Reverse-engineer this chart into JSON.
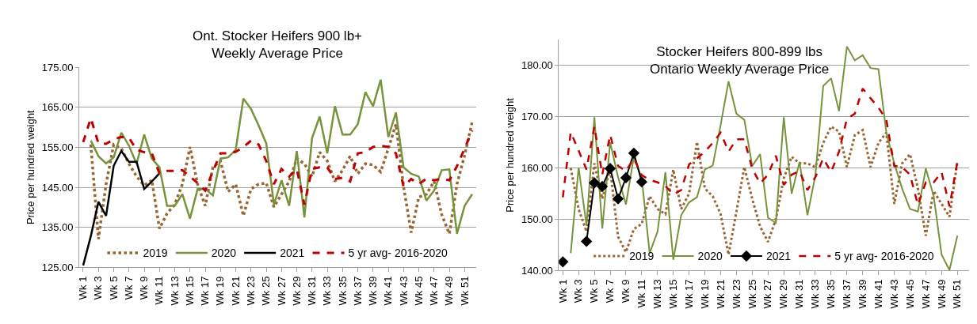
{
  "chart_data": [
    {
      "type": "line",
      "title": "Ont. Stocker Heifers 900 lb+\nWeekly Average Price",
      "ylabel": "Price per hundred weight",
      "categories": [
        "Wk 1",
        null,
        "Wk 3",
        null,
        "Wk 5",
        null,
        "Wk 7",
        null,
        "Wk 9",
        null,
        "Wk 11",
        null,
        "Wk 13",
        null,
        "Wk 15",
        null,
        "Wk 17",
        null,
        "Wk 19",
        null,
        "Wk 21",
        null,
        "Wk 23",
        null,
        "Wk 25",
        null,
        "Wk 27",
        null,
        "Wk 29",
        null,
        "Wk 31",
        null,
        "Wk 33",
        null,
        "Wk 35",
        null,
        "Wk 37",
        null,
        "Wk 39",
        null,
        "Wk 41",
        null,
        "Wk 43",
        null,
        "Wk 45",
        null,
        "Wk 47",
        null,
        "Wk 49",
        null,
        "Wk 51",
        null
      ],
      "ylim": [
        125,
        175
      ],
      "yticks": [
        {
          "value": 125,
          "label": "125.00"
        },
        {
          "value": 135,
          "label": "135.00"
        },
        {
          "value": 145,
          "label": "145.00"
        },
        {
          "value": 155,
          "label": "155.00"
        },
        {
          "value": 165,
          "label": "165.00"
        },
        {
          "value": 175,
          "label": "175.00"
        }
      ],
      "grid": "y",
      "legend": "bottom",
      "series": [
        {
          "name": "2019",
          "color": "#996633",
          "line_style": "dotted",
          "values": [
            null,
            155.7,
            132.1,
            145.8,
            155.7,
            154.7,
            150.9,
            147.7,
            145.5,
            146.8,
            134.7,
            138.5,
            140.7,
            145.8,
            155.1,
            145.8,
            140.4,
            150,
            151.6,
            143.9,
            145.8,
            137.9,
            144.6,
            145.8,
            146.1,
            140.1,
            143.3,
            146.5,
            152.2,
            150.9,
            147.7,
            153.8,
            151.6,
            146.5,
            149.3,
            152.8,
            148.4,
            150.9,
            150.6,
            148.9,
            154.7,
            160.8,
            145.2,
            133.7,
            142.6,
            143.3,
            146.5,
            138.2,
            133.4,
            145.8,
            153,
            161.4
          ]
        },
        {
          "name": "2020",
          "color": "#77933c",
          "line_style": "solid",
          "values": [
            null,
            156.7,
            152.8,
            151,
            152.5,
            158.7,
            155.4,
            150.9,
            158.2,
            152.2,
            150,
            140.4,
            140.4,
            143.3,
            137.2,
            144.6,
            144.6,
            143,
            152.2,
            152.5,
            154.4,
            167.2,
            164.6,
            160.5,
            156,
            140.7,
            146.8,
            140.4,
            154.1,
            137.5,
            157.3,
            162.7,
            153.5,
            165.3,
            158.2,
            158.2,
            160.8,
            168.8,
            165.3,
            171.9,
            157.6,
            163.7,
            150,
            148.4,
            147.7,
            141.7,
            144.2,
            149.3,
            149.5,
            133.4,
            140.4,
            143.3
          ]
        },
        {
          "name": "2021",
          "color": "#000000",
          "line_style": "solid",
          "values": [
            125.5,
            132.8,
            141.4,
            137.9,
            150.4,
            154.1,
            151.4,
            151.4,
            144.6,
            146.5,
            148.5,
            null,
            null,
            null,
            null,
            null,
            null,
            null,
            null,
            null,
            null,
            null,
            null,
            null,
            null,
            null,
            null,
            null,
            null,
            null,
            null,
            null,
            null,
            null,
            null,
            null,
            null,
            null,
            null,
            null,
            null,
            null,
            null,
            null,
            null,
            null,
            null,
            null,
            null,
            null,
            null,
            null
          ]
        },
        {
          "name": "5 yr avg- 2016-2020",
          "color": "#c00000",
          "line_style": "dashed",
          "values": [
            156.3,
            162.3,
            156,
            155.9,
            157,
            157.6,
            157.4,
            154.4,
            153.8,
            153.5,
            148.5,
            149.1,
            149.1,
            149.3,
            147.7,
            146.1,
            144.2,
            149,
            153.5,
            153.5,
            153.9,
            155.1,
            156.7,
            155.7,
            151.6,
            145.8,
            149.6,
            147.7,
            149.6,
            140.7,
            149.6,
            150,
            150,
            147.1,
            147.4,
            146.5,
            153.5,
            153.8,
            155.1,
            155.4,
            155.1,
            153.5,
            145.2,
            147.1,
            145.8,
            147.2,
            146.8,
            147.1,
            146.8,
            150.3,
            154.7,
            159.2
          ]
        }
      ]
    },
    {
      "type": "line",
      "title": "Stocker Heifers 800-899 lbs\nOntario Weekly Average Price",
      "ylabel": "Price per hundred weight",
      "categories": [
        "Wk 1",
        null,
        "Wk 3",
        null,
        "Wk 5",
        null,
        "Wk 7",
        null,
        "Wk 9",
        null,
        "Wk 11",
        null,
        "Wk 13",
        null,
        "Wk 15",
        null,
        "Wk 17",
        null,
        "Wk 19",
        null,
        "Wk 21",
        null,
        "Wk 23",
        null,
        "Wk 25",
        null,
        "Wk 27",
        null,
        "Wk 29",
        null,
        "Wk 31",
        null,
        "Wk 33",
        null,
        "Wk 35",
        null,
        "Wk 37",
        null,
        "Wk 39",
        null,
        "Wk 41",
        null,
        "Wk 43",
        null,
        "Wk 45",
        null,
        "Wk 47",
        null,
        "Wk 49",
        null,
        "Wk 51",
        null
      ],
      "ylim": [
        140,
        185
      ],
      "yticks": [
        {
          "value": 140,
          "label": "140.00"
        },
        {
          "value": 150,
          "label": "150.00"
        },
        {
          "value": 160,
          "label": "160.00"
        },
        {
          "value": 170,
          "label": "170.00"
        },
        {
          "value": 180,
          "label": "180.00"
        }
      ],
      "grid": "y",
      "legend": "bottom",
      "series": [
        {
          "name": "2019",
          "color": "#996633",
          "line_style": "dotted",
          "values": [
            null,
            160,
            152,
            147.6,
            160.9,
            154,
            159.9,
            146.6,
            143.6,
            148.1,
            149.1,
            154.5,
            152,
            151,
            159.7,
            152,
            155,
            165.1,
            156,
            154.5,
            151,
            143.1,
            151.5,
            160.2,
            154,
            148.6,
            145.6,
            150,
            158,
            162.2,
            160.9,
            160.9,
            160.2,
            164.9,
            168.1,
            167.1,
            160.2,
            166.4,
            167.4,
            160.2,
            164.9,
            166.9,
            153,
            160.9,
            162.7,
            156,
            146.8,
            155.5,
            153,
            150.5,
            161.2,
            null
          ]
        },
        {
          "name": "2020",
          "color": "#77933c",
          "line_style": "solid",
          "values": [
            null,
            143.4,
            160.1,
            148.8,
            169.9,
            148.2,
            165,
            158.2,
            152.9,
            162.2,
            158,
            143.4,
            147.6,
            159.2,
            142.1,
            150.8,
            153.3,
            154.3,
            159.7,
            160.5,
            168.4,
            176.9,
            170.6,
            169.4,
            160.4,
            162.7,
            150.3,
            149.3,
            169.9,
            155,
            161.2,
            150.8,
            158.5,
            176,
            177.5,
            171.1,
            183.7,
            181,
            182,
            179.5,
            179.3,
            166.9,
            160.9,
            156,
            152,
            151.5,
            159.9,
            154.5,
            143.1,
            140.1,
            146.8,
            null
          ]
        },
        {
          "name": "2021",
          "color": "#000000",
          "line_style": "solid",
          "marker": "diamond",
          "values": [
            141.7,
            null,
            null,
            145.7,
            157.1,
            156.4,
            159.9,
            154,
            158.1,
            162.9,
            157.3,
            null,
            null,
            null,
            null,
            null,
            null,
            null,
            null,
            null,
            null,
            null,
            null,
            null,
            null,
            null,
            null,
            null,
            null,
            null,
            null,
            null,
            null,
            null,
            null,
            null,
            null,
            null,
            null,
            null,
            null,
            null,
            null,
            null,
            null,
            null,
            null,
            null,
            null,
            null,
            null,
            null
          ]
        },
        {
          "name": "5 yr avg- 2016-2020",
          "color": "#c00000",
          "line_style": "dashed",
          "values": [
            154.3,
            167,
            163.4,
            159.7,
            168.1,
            158.7,
            166.5,
            160.4,
            159.4,
            161.9,
            158.6,
            157.7,
            157.2,
            156.5,
            154.8,
            155.7,
            160.7,
            161.9,
            163.2,
            164.9,
            166.9,
            163.2,
            165.6,
            165.6,
            159.9,
            157,
            158.7,
            162.4,
            156.7,
            158.7,
            159.4,
            155.7,
            158.2,
            161.9,
            159.2,
            163.2,
            169.6,
            170.6,
            175.5,
            173.6,
            171.8,
            169.4,
            160.4,
            160.2,
            158.7,
            152.8,
            157.2,
            157.2,
            159.2,
            152.5,
            161.2,
            null
          ]
        }
      ]
    }
  ]
}
